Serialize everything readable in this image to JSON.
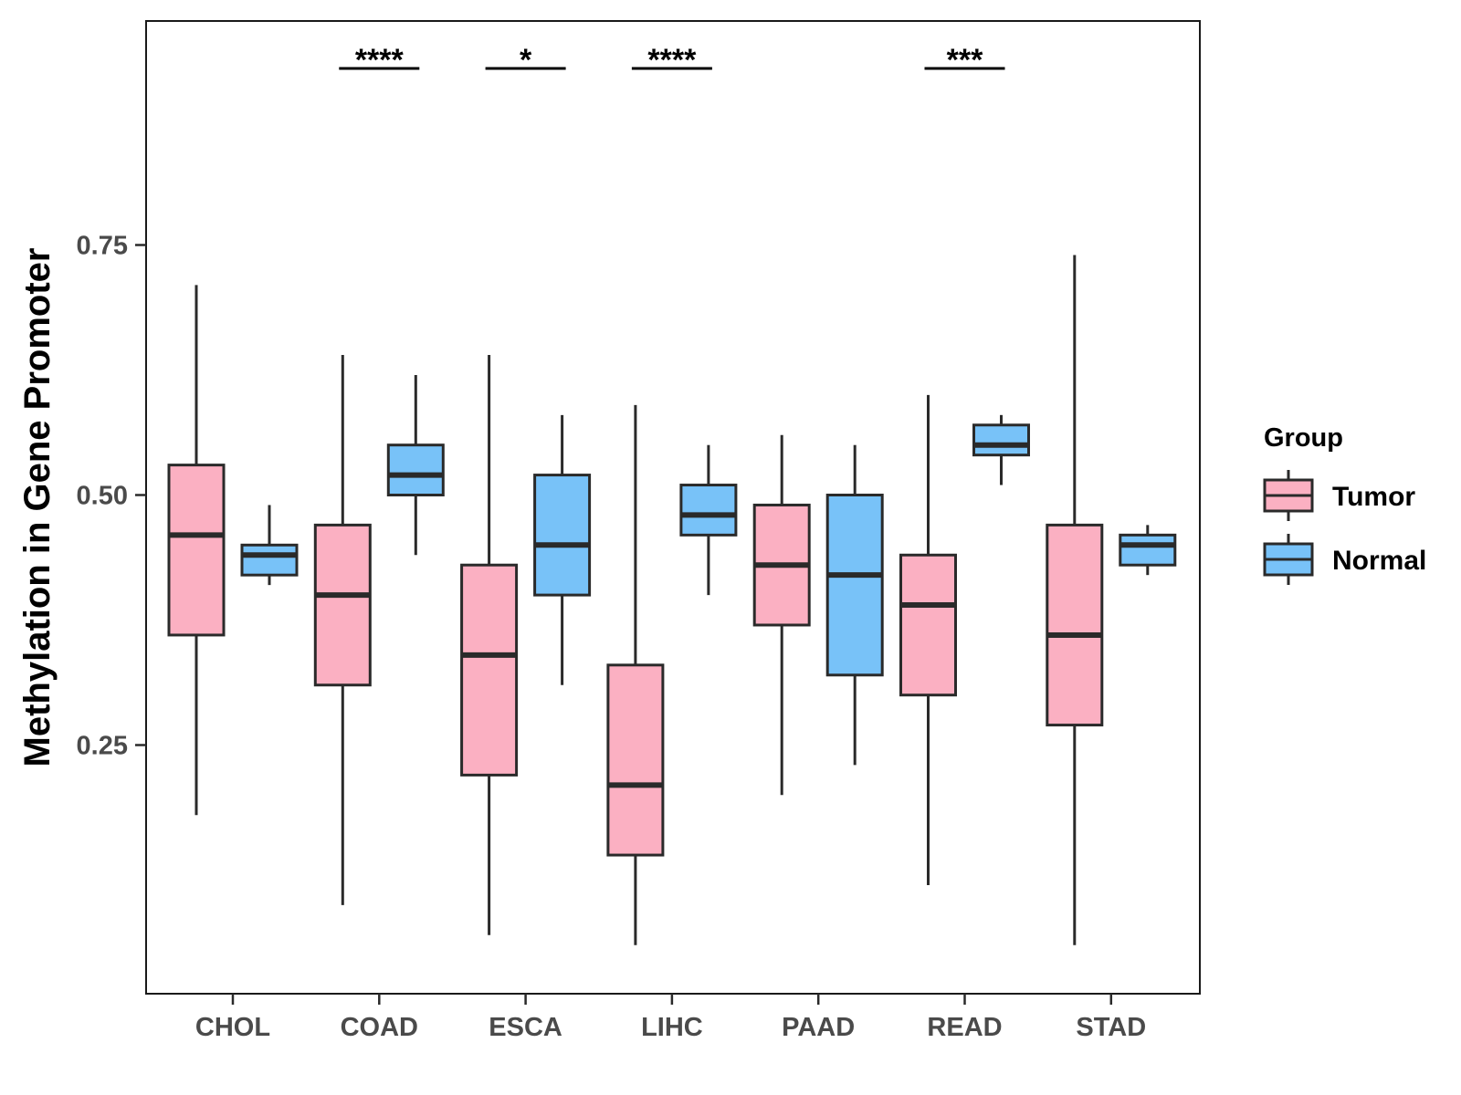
{
  "chart_data": {
    "type": "box",
    "title": "",
    "xlabel": "",
    "ylabel": "Methylation in Gene Promoter",
    "ylim": [
      0.01,
      0.98
    ],
    "yticks": [
      0.25,
      0.5,
      0.75
    ],
    "ytick_labels": [
      "0.25",
      "0.50",
      "0.75"
    ],
    "grid": false,
    "legend_position": "right",
    "categories": [
      "CHOL",
      "COAD",
      "ESCA",
      "LIHC",
      "PAAD",
      "READ",
      "STAD"
    ],
    "legend": {
      "title": "Group",
      "items": [
        {
          "name": "Tumor",
          "color": "#FBB0C2"
        },
        {
          "name": "Normal",
          "color": "#78C2F8"
        }
      ]
    },
    "series": [
      {
        "name": "Tumor",
        "color": "#FBB0C2",
        "boxes": [
          {
            "category": "CHOL",
            "min": 0.18,
            "q1": 0.36,
            "median": 0.46,
            "q3": 0.53,
            "max": 0.71
          },
          {
            "category": "COAD",
            "min": 0.09,
            "q1": 0.31,
            "median": 0.4,
            "q3": 0.47,
            "max": 0.64
          },
          {
            "category": "ESCA",
            "min": 0.06,
            "q1": 0.22,
            "median": 0.34,
            "q3": 0.43,
            "max": 0.64
          },
          {
            "category": "LIHC",
            "min": 0.05,
            "q1": 0.14,
            "median": 0.21,
            "q3": 0.33,
            "max": 0.59
          },
          {
            "category": "PAAD",
            "min": 0.2,
            "q1": 0.37,
            "median": 0.43,
            "q3": 0.49,
            "max": 0.56
          },
          {
            "category": "READ",
            "min": 0.11,
            "q1": 0.3,
            "median": 0.39,
            "q3": 0.44,
            "max": 0.6
          },
          {
            "category": "STAD",
            "min": 0.05,
            "q1": 0.27,
            "median": 0.36,
            "q3": 0.47,
            "max": 0.74
          }
        ]
      },
      {
        "name": "Normal",
        "color": "#78C2F8",
        "boxes": [
          {
            "category": "CHOL",
            "min": 0.41,
            "q1": 0.42,
            "median": 0.44,
            "q3": 0.45,
            "max": 0.49
          },
          {
            "category": "COAD",
            "min": 0.44,
            "q1": 0.5,
            "median": 0.52,
            "q3": 0.55,
            "max": 0.62
          },
          {
            "category": "ESCA",
            "min": 0.31,
            "q1": 0.4,
            "median": 0.45,
            "q3": 0.52,
            "max": 0.58
          },
          {
            "category": "LIHC",
            "min": 0.4,
            "q1": 0.46,
            "median": 0.48,
            "q3": 0.51,
            "max": 0.55
          },
          {
            "category": "PAAD",
            "min": 0.23,
            "q1": 0.32,
            "median": 0.42,
            "q3": 0.5,
            "max": 0.55
          },
          {
            "category": "READ",
            "min": 0.51,
            "q1": 0.54,
            "median": 0.55,
            "q3": 0.57,
            "max": 0.58
          },
          {
            "category": "STAD",
            "min": 0.42,
            "q1": 0.43,
            "median": 0.45,
            "q3": 0.46,
            "max": 0.47
          }
        ]
      }
    ],
    "annotations": [
      {
        "category": "COAD",
        "label": "****"
      },
      {
        "category": "ESCA",
        "label": "*"
      },
      {
        "category": "LIHC",
        "label": "****"
      },
      {
        "category": "READ",
        "label": "***"
      }
    ]
  }
}
